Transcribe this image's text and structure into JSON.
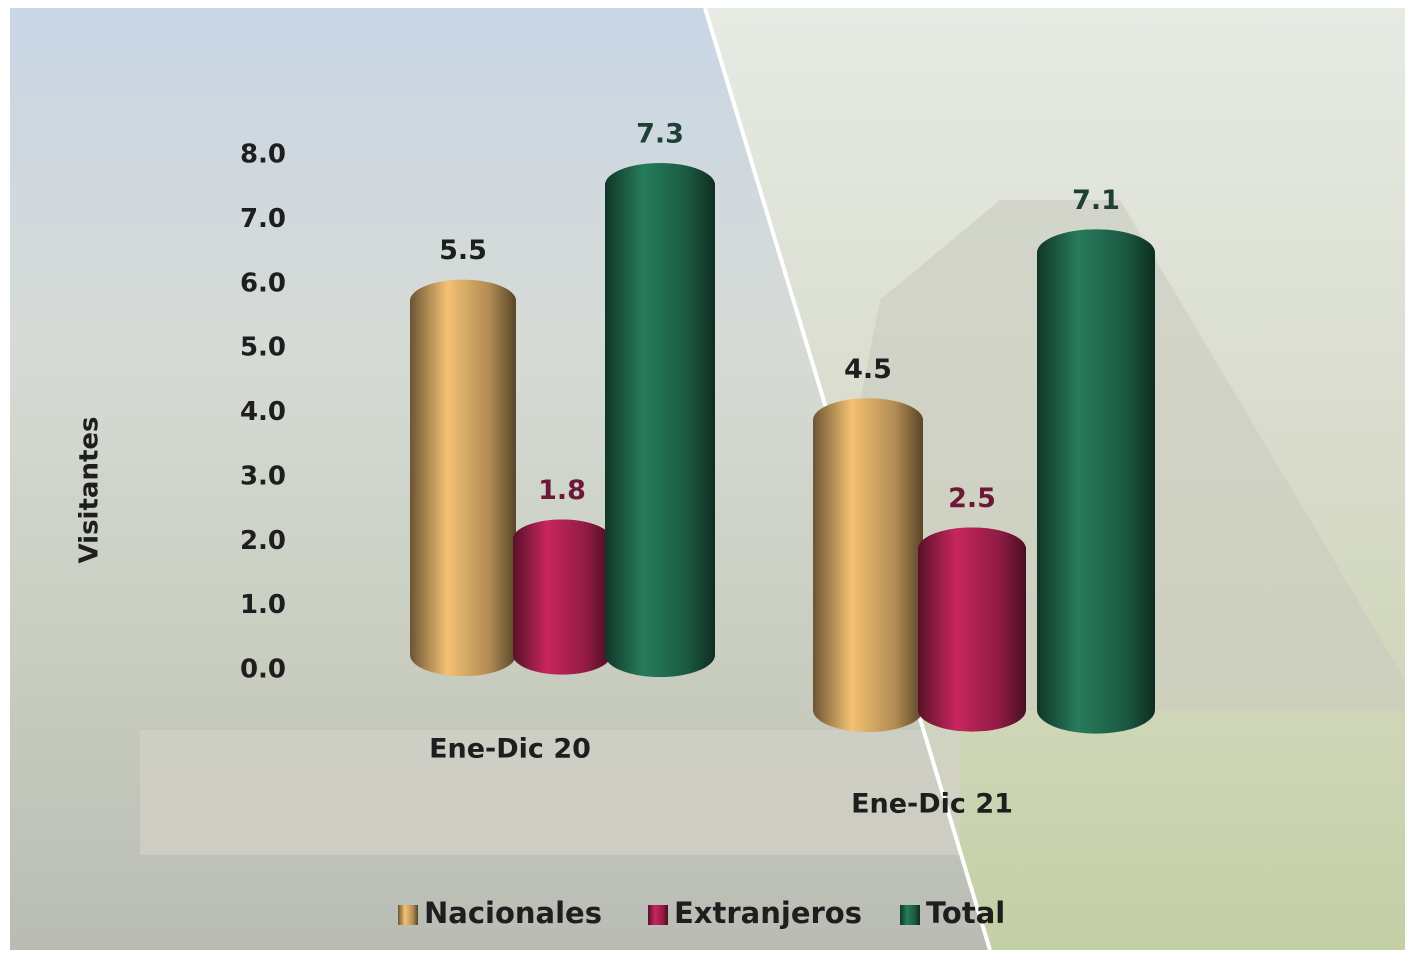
{
  "chart_data": {
    "type": "bar3d",
    "y_label": "Visitantes",
    "categories": [
      "Ene-Dic 20",
      "Ene-Dic 21"
    ],
    "series": [
      {
        "name": "Nacionales",
        "color": "#c49a5c",
        "label_color": "#1e1e1e",
        "values": [
          5.5,
          4.5
        ]
      },
      {
        "name": "Extranjeros",
        "color": "#a01e4b",
        "label_color": "#6e1838",
        "values": [
          1.8,
          2.5
        ]
      },
      {
        "name": "Total",
        "color": "#1e6349",
        "label_color": "#1f3f34",
        "values": [
          7.3,
          7.1
        ]
      }
    ],
    "ylim": [
      0,
      8
    ],
    "yticks": [
      {
        "value": 0,
        "label": "0.0"
      },
      {
        "value": 1,
        "label": "1.0"
      },
      {
        "value": 2,
        "label": "2.0"
      },
      {
        "value": 3,
        "label": "3.0"
      },
      {
        "value": 4,
        "label": "4.0"
      },
      {
        "value": 5,
        "label": "5.0"
      },
      {
        "value": 6,
        "label": "6.0"
      },
      {
        "value": 7,
        "label": "7.0"
      },
      {
        "value": 8,
        "label": "8.0"
      }
    ],
    "legend": "bottom"
  }
}
